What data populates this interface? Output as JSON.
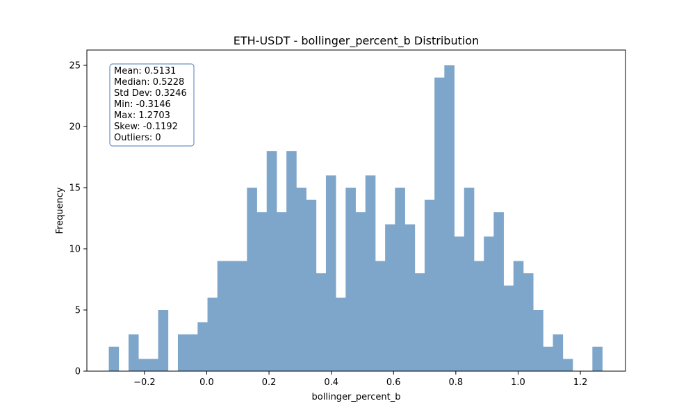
{
  "chart_data": {
    "type": "bar",
    "title": "ETH-USDT - bollinger_percent_b Distribution",
    "xlabel": "bollinger_percent_b",
    "ylabel": "Frequency",
    "xlim": [
      -0.385,
      1.345
    ],
    "ylim": [
      0,
      26.25
    ],
    "xticks": [
      -0.2,
      0.0,
      0.2,
      0.4,
      0.6,
      0.8,
      1.0,
      1.2
    ],
    "xtick_labels": [
      "−0.2",
      "0.0",
      "0.2",
      "0.4",
      "0.6",
      "0.8",
      "1.0",
      "1.2"
    ],
    "yticks": [
      0,
      5,
      10,
      15,
      20,
      25
    ],
    "ytick_labels": [
      "0",
      "5",
      "10",
      "15",
      "20",
      "25"
    ],
    "bar_color": "#7ea6cb",
    "bin_start": -0.3146,
    "bin_end": 1.2703,
    "bin_count": 50,
    "counts": [
      2,
      0,
      3,
      1,
      1,
      5,
      0,
      3,
      3,
      4,
      6,
      9,
      9,
      9,
      15,
      13,
      18,
      13,
      18,
      15,
      14,
      8,
      16,
      6,
      15,
      13,
      16,
      9,
      12,
      15,
      12,
      8,
      14,
      24,
      25,
      11,
      15,
      9,
      11,
      13,
      7,
      9,
      8,
      5,
      2,
      3,
      1,
      0,
      0,
      2
    ],
    "grid": false,
    "legend": "none"
  },
  "stats_box": {
    "lines": [
      "Mean: 0.5131",
      "Median: 0.5228",
      "Std Dev: 0.3246",
      "Min: -0.3146",
      "Max: 1.2703",
      "Skew: -0.1192",
      "Outliers: 0"
    ],
    "border_color": "#6b93c0"
  }
}
